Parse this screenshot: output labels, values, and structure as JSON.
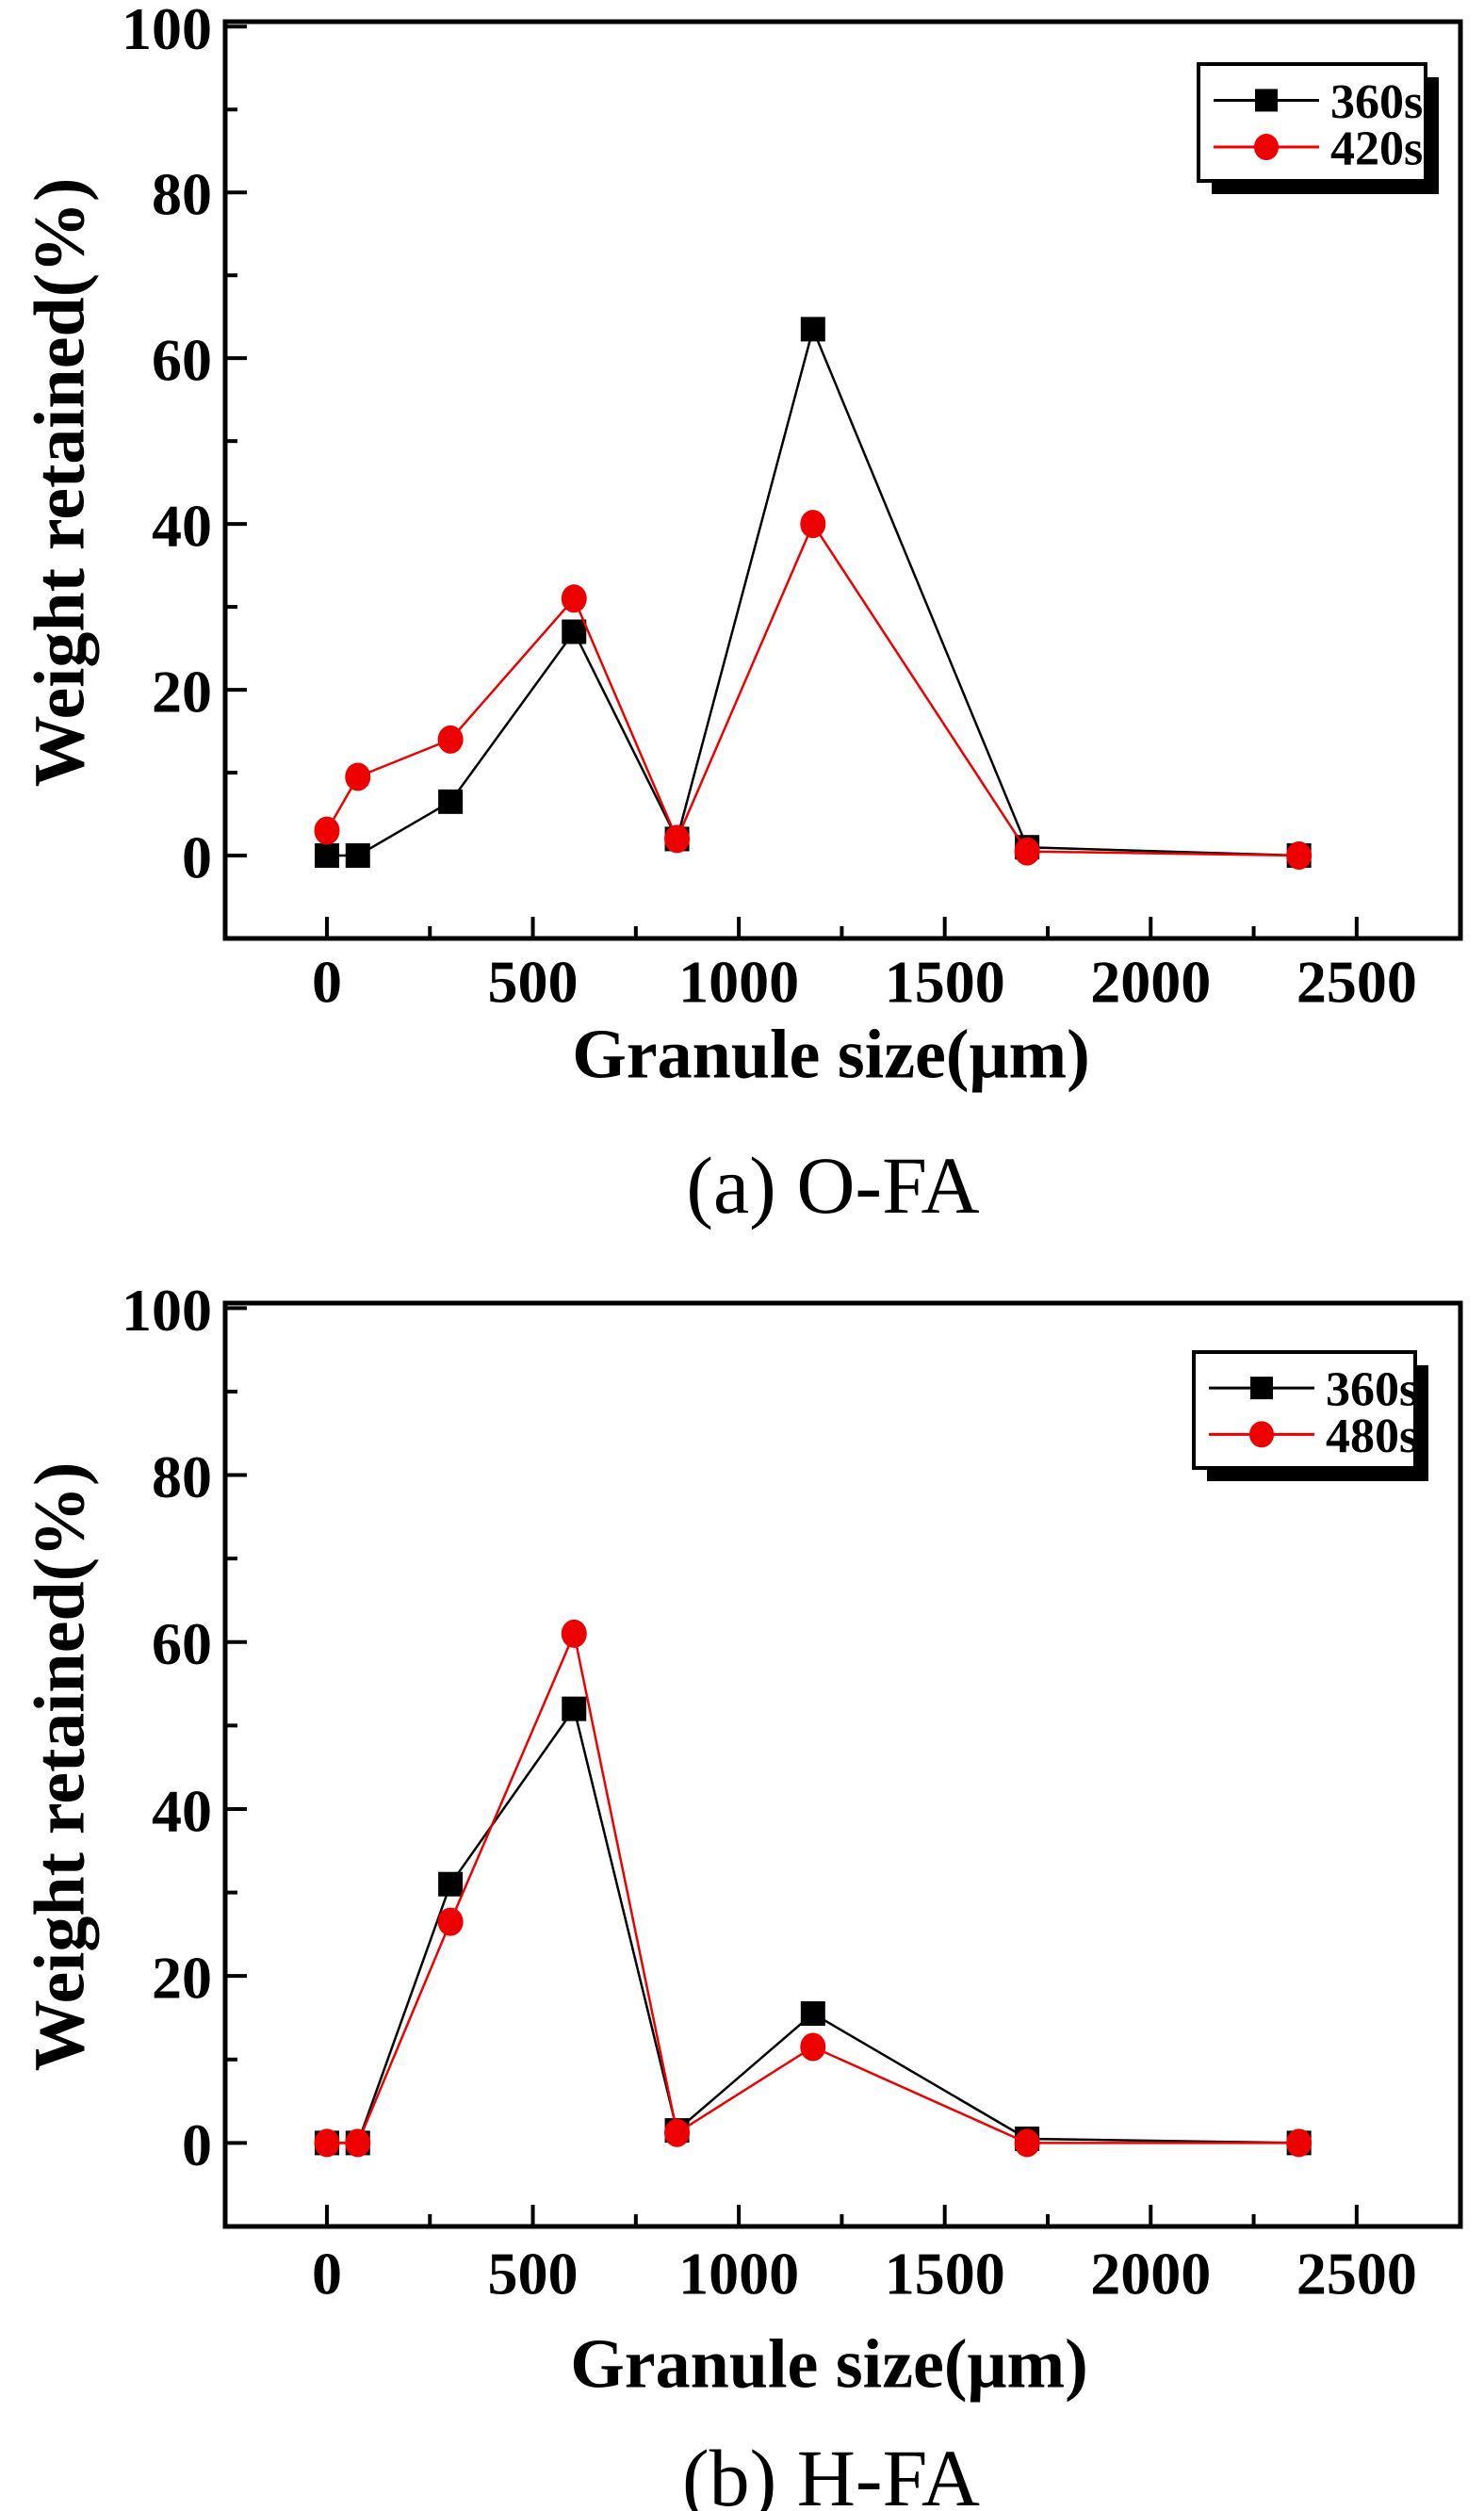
{
  "page": {
    "background": "#ffffff"
  },
  "chart_data": [
    {
      "id": "a",
      "type": "line",
      "caption": "(a) O-FA",
      "xlabel": "Granule size(μm)",
      "ylabel": "Weight retained(%)",
      "xlim": [
        0,
        2500
      ],
      "ylim": [
        0,
        100
      ],
      "x_ticks": [
        0,
        500,
        1000,
        1500,
        2000,
        2500
      ],
      "y_ticks": [
        0,
        20,
        40,
        60,
        80,
        100
      ],
      "grid": false,
      "legend_position": "top-right",
      "x": [
        0,
        75,
        300,
        600,
        850,
        1180,
        1700,
        2360
      ],
      "series": [
        {
          "name": "360s",
          "color": "#000000",
          "marker": "square",
          "values": [
            0,
            0,
            6.5,
            27,
            2,
            63.5,
            1,
            0
          ]
        },
        {
          "name": "420s",
          "color": "#ee0000",
          "marker": "circle",
          "values": [
            3,
            9.5,
            14,
            31,
            2,
            40,
            0.5,
            0
          ]
        }
      ]
    },
    {
      "id": "b",
      "type": "line",
      "caption": "(b) H-FA",
      "xlabel": "Granule size(μm)",
      "ylabel": "Weight retained(%)",
      "xlim": [
        0,
        2500
      ],
      "ylim": [
        0,
        100
      ],
      "x_ticks": [
        0,
        500,
        1000,
        1500,
        2000,
        2500
      ],
      "y_ticks": [
        0,
        20,
        40,
        60,
        80,
        100
      ],
      "grid": false,
      "legend_position": "top-right",
      "x": [
        0,
        75,
        300,
        600,
        850,
        1180,
        1700,
        2360
      ],
      "series": [
        {
          "name": "360s",
          "color": "#000000",
          "marker": "square",
          "values": [
            0,
            0,
            31,
            52,
            1.5,
            15.5,
            0.5,
            0
          ]
        },
        {
          "name": "480s",
          "color": "#ee0000",
          "marker": "circle",
          "values": [
            0,
            0,
            26.5,
            61,
            1.2,
            11.5,
            0,
            0
          ]
        }
      ]
    }
  ]
}
